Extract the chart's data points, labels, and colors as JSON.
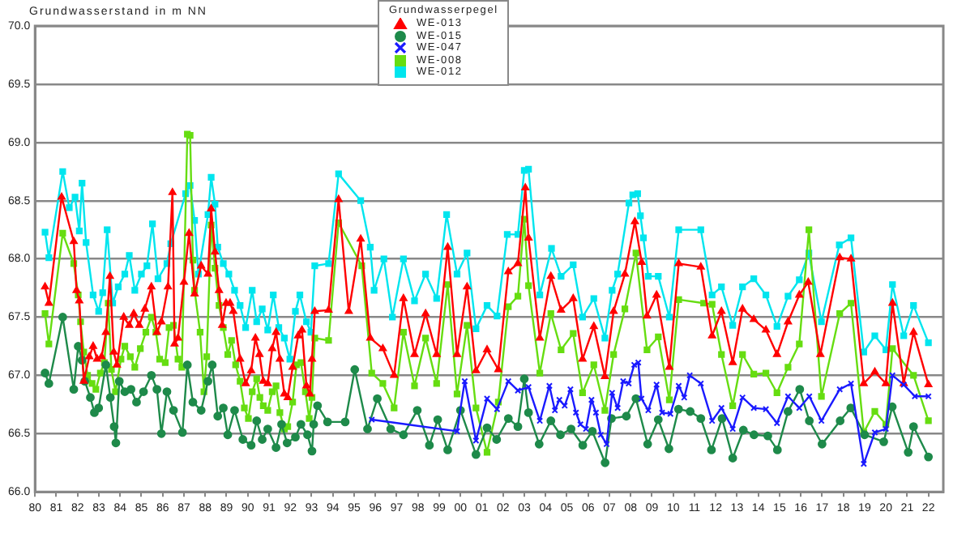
{
  "chart_data": {
    "type": "line",
    "ylabel": "Grundwasserstand in m NN",
    "legend_title": "Grundwasserpegel",
    "legend": "top",
    "grid": "y",
    "xlim": [
      1980,
      2022.7
    ],
    "xticks": [
      {
        "value": 1980,
        "label": "80"
      },
      {
        "value": 1981,
        "label": "81"
      },
      {
        "value": 1982,
        "label": "82"
      },
      {
        "value": 1983,
        "label": "83"
      },
      {
        "value": 1984,
        "label": "84"
      },
      {
        "value": 1985,
        "label": "85"
      },
      {
        "value": 1986,
        "label": "86"
      },
      {
        "value": 1987,
        "label": "87"
      },
      {
        "value": 1988,
        "label": "88"
      },
      {
        "value": 1989,
        "label": "89"
      },
      {
        "value": 1990,
        "label": "90"
      },
      {
        "value": 1991,
        "label": "91"
      },
      {
        "value": 1992,
        "label": "92"
      },
      {
        "value": 1993,
        "label": "93"
      },
      {
        "value": 1994,
        "label": "94"
      },
      {
        "value": 1995,
        "label": "95"
      },
      {
        "value": 1996,
        "label": "96"
      },
      {
        "value": 1997,
        "label": "97"
      },
      {
        "value": 1998,
        "label": "98"
      },
      {
        "value": 1999,
        "label": "99"
      },
      {
        "value": 2000,
        "label": "00"
      },
      {
        "value": 2001,
        "label": "01"
      },
      {
        "value": 2002,
        "label": "02"
      },
      {
        "value": 2003,
        "label": "03"
      },
      {
        "value": 2004,
        "label": "04"
      },
      {
        "value": 2005,
        "label": "05"
      },
      {
        "value": 2006,
        "label": "06"
      },
      {
        "value": 2007,
        "label": "07"
      },
      {
        "value": 2008,
        "label": "08"
      },
      {
        "value": 2009,
        "label": "09"
      },
      {
        "value": 2010,
        "label": "10"
      },
      {
        "value": 2011,
        "label": "11"
      },
      {
        "value": 2012,
        "label": "12"
      },
      {
        "value": 2013,
        "label": "13"
      },
      {
        "value": 2014,
        "label": "14"
      },
      {
        "value": 2015,
        "label": "15"
      },
      {
        "value": 2016,
        "label": "16"
      },
      {
        "value": 2017,
        "label": "17"
      },
      {
        "value": 2018,
        "label": "18"
      },
      {
        "value": 2019,
        "label": "19"
      },
      {
        "value": 2020,
        "label": "20"
      },
      {
        "value": 2021,
        "label": "21"
      },
      {
        "value": 2022,
        "label": "22"
      }
    ],
    "ylim": [
      66,
      70
    ],
    "yticks": [
      {
        "value": 66,
        "label": "66.0"
      },
      {
        "value": 66.5,
        "label": "66.5"
      },
      {
        "value": 67,
        "label": "67.0"
      },
      {
        "value": 67.5,
        "label": "67.5"
      },
      {
        "value": 68,
        "label": "68.0"
      },
      {
        "value": 68.5,
        "label": "68.5"
      },
      {
        "value": 69,
        "label": "69.0"
      },
      {
        "value": 69.5,
        "label": "69.5"
      },
      {
        "value": 70,
        "label": "70.0"
      }
    ],
    "series": [
      {
        "name": "WE-013",
        "color": "#ff0000",
        "marker": "triangle",
        "x": [
          1980.47,
          1980.65,
          1981.25,
          1981.82,
          1981.95,
          1982.08,
          1982.29,
          1982.55,
          1982.73,
          1982.92,
          1983.13,
          1983.33,
          1983.52,
          1983.7,
          1983.85,
          1984.17,
          1984.43,
          1984.64,
          1984.9,
          1985.16,
          1985.47,
          1985.73,
          1985.94,
          1986.25,
          1986.46,
          1986.56,
          1986.72,
          1987.0,
          1987.24,
          1987.5,
          1987.81,
          1988.13,
          1988.28,
          1988.46,
          1988.65,
          1988.8,
          1988.98,
          1989.17,
          1989.32,
          1989.64,
          1989.9,
          1990.16,
          1990.36,
          1990.55,
          1990.73,
          1990.94,
          1991.15,
          1991.33,
          1991.51,
          1991.72,
          1991.88,
          1992.11,
          1992.37,
          1992.55,
          1992.76,
          1992.92,
          1993.02,
          1993.15,
          1993.8,
          1994.27,
          1994.75,
          1995.31,
          1995.76,
          1996.35,
          1996.88,
          1997.32,
          1997.84,
          1998.36,
          1998.88,
          1999.4,
          1999.84,
          2000.31,
          2000.73,
          2001.25,
          2001.78,
          2002.25,
          2002.7,
          2003.05,
          2003.2,
          2003.73,
          2004.25,
          2004.73,
          2005.3,
          2005.74,
          2006.27,
          2006.79,
          2007.2,
          2007.73,
          2008.2,
          2008.52,
          2008.77,
          2009.22,
          2009.82,
          2010.26,
          2011.3,
          2011.83,
          2012.27,
          2012.8,
          2013.26,
          2013.79,
          2014.36,
          2014.88,
          2015.4,
          2015.93,
          2016.35,
          2016.92,
          2017.83,
          2018.36,
          2018.96,
          2019.48,
          2020.0,
          2020.31,
          2020.84,
          2021.3,
          2022.0
        ],
        "values": [
          67.76,
          67.62,
          68.53,
          68.15,
          67.73,
          67.64,
          66.95,
          67.16,
          67.25,
          67.14,
          67.16,
          67.37,
          67.85,
          67.2,
          67.09,
          67.5,
          67.43,
          67.53,
          67.43,
          67.57,
          67.76,
          67.37,
          67.46,
          67.76,
          68.57,
          67.27,
          67.32,
          67.8,
          68.22,
          67.7,
          67.94,
          67.87,
          68.43,
          68.06,
          67.73,
          67.43,
          67.62,
          67.62,
          67.55,
          67.14,
          66.93,
          67.04,
          67.32,
          67.18,
          66.95,
          66.93,
          67.23,
          67.37,
          67.14,
          66.84,
          66.81,
          67.07,
          67.34,
          67.39,
          66.91,
          66.84,
          67.14,
          67.55,
          67.56,
          68.51,
          67.55,
          68.17,
          67.32,
          67.23,
          67.0,
          67.66,
          67.18,
          67.53,
          67.18,
          68.1,
          67.18,
          67.76,
          67.04,
          67.22,
          67.05,
          67.89,
          67.96,
          68.61,
          68.18,
          67.32,
          67.85,
          67.56,
          67.66,
          67.14,
          67.42,
          66.99,
          67.55,
          67.87,
          68.32,
          67.97,
          67.51,
          67.69,
          67.07,
          67.96,
          67.93,
          67.34,
          67.55,
          67.11,
          67.57,
          67.48,
          67.39,
          67.18,
          67.46,
          67.69,
          67.8,
          67.18,
          68.01,
          68.0,
          66.93,
          67.03,
          66.93,
          67.62,
          66.93,
          67.37,
          66.92
        ]
      },
      {
        "name": "WE-015",
        "color": "#1e8a4a",
        "marker": "circle",
        "x": [
          1980.47,
          1980.65,
          1981.3,
          1981.82,
          1982.03,
          1982.21,
          1982.34,
          1982.6,
          1982.79,
          1982.99,
          1983.33,
          1983.54,
          1983.72,
          1983.8,
          1983.96,
          1984.22,
          1984.51,
          1984.77,
          1985.1,
          1985.47,
          1985.73,
          1985.94,
          1986.2,
          1986.51,
          1986.93,
          1987.16,
          1987.42,
          1987.81,
          1988.13,
          1988.33,
          1988.59,
          1988.85,
          1989.06,
          1989.38,
          1989.77,
          1990.16,
          1990.42,
          1990.68,
          1990.94,
          1991.33,
          1991.59,
          1991.85,
          1992.24,
          1992.5,
          1992.81,
          1993.02,
          1993.1,
          1993.28,
          1993.75,
          1994.58,
          1995.03,
          1995.63,
          1996.09,
          1996.72,
          1997.32,
          1997.97,
          1998.54,
          1998.93,
          1999.4,
          2000.0,
          2000.73,
          2001.25,
          2001.7,
          2002.25,
          2002.7,
          2003.0,
          2003.2,
          2003.7,
          2004.25,
          2004.7,
          2005.2,
          2005.75,
          2006.2,
          2006.8,
          2007.1,
          2007.8,
          2008.25,
          2008.8,
          2009.3,
          2009.8,
          2010.25,
          2010.8,
          2011.3,
          2011.8,
          2012.3,
          2012.8,
          2013.3,
          2013.8,
          2014.45,
          2014.9,
          2015.4,
          2015.95,
          2016.4,
          2017.0,
          2017.85,
          2018.35,
          2019.0,
          2019.9,
          2020.3,
          2021.05,
          2021.3,
          2022.0
        ],
        "values": [
          67.02,
          66.93,
          67.5,
          66.88,
          67.25,
          67.13,
          66.95,
          66.81,
          66.68,
          66.72,
          67.09,
          66.81,
          66.56,
          66.42,
          66.95,
          66.86,
          66.88,
          66.77,
          66.86,
          67.0,
          66.88,
          66.5,
          66.86,
          66.7,
          66.51,
          67.09,
          66.77,
          66.7,
          66.95,
          67.09,
          66.65,
          66.72,
          66.49,
          66.7,
          66.45,
          66.4,
          66.61,
          66.45,
          66.54,
          66.38,
          66.58,
          66.42,
          66.47,
          66.58,
          66.49,
          66.35,
          66.58,
          66.74,
          66.6,
          66.6,
          67.05,
          66.54,
          66.8,
          66.54,
          66.49,
          66.7,
          66.4,
          66.62,
          66.36,
          66.7,
          66.32,
          66.55,
          66.45,
          66.63,
          66.56,
          66.97,
          66.68,
          66.41,
          66.61,
          66.49,
          66.54,
          66.4,
          66.52,
          66.25,
          66.63,
          66.65,
          66.8,
          66.41,
          66.62,
          66.37,
          66.71,
          66.69,
          66.63,
          66.36,
          66.63,
          66.29,
          66.53,
          66.49,
          66.48,
          66.36,
          66.69,
          66.88,
          66.61,
          66.41,
          66.61,
          66.72,
          66.49,
          66.43,
          66.73,
          66.34,
          66.56,
          66.3
        ]
      },
      {
        "name": "WE-047",
        "color": "#1a1aff",
        "marker": "cross",
        "x": [
          1995.83,
          1999.84,
          2000.2,
          2000.73,
          2001.25,
          2001.72,
          2002.25,
          2002.7,
          2003.2,
          2003.73,
          2004.18,
          2004.44,
          2004.65,
          2004.9,
          2005.17,
          2005.43,
          2005.64,
          2005.9,
          2006.16,
          2006.37,
          2006.6,
          2006.87,
          2007.13,
          2007.39,
          2007.65,
          2007.91,
          2008.17,
          2008.36,
          2008.51,
          2008.83,
          2009.22,
          2009.48,
          2009.87,
          2010.26,
          2010.52,
          2010.78,
          2011.3,
          2011.83,
          2012.27,
          2012.8,
          2013.26,
          2013.79,
          2014.36,
          2014.88,
          2015.4,
          2015.93,
          2016.4,
          2016.97,
          2017.83,
          2018.36,
          2018.96,
          2019.48,
          2020.0,
          2020.31,
          2020.84,
          2021.36,
          2022.0
        ],
        "values": [
          66.62,
          66.52,
          66.95,
          66.44,
          66.8,
          66.71,
          66.95,
          66.87,
          66.9,
          66.61,
          66.91,
          66.7,
          66.79,
          66.74,
          66.88,
          66.68,
          66.58,
          66.54,
          66.79,
          66.68,
          66.49,
          66.41,
          66.85,
          66.72,
          66.95,
          66.93,
          67.09,
          67.11,
          66.8,
          66.7,
          66.92,
          66.68,
          66.67,
          66.91,
          66.81,
          67.0,
          66.93,
          66.61,
          66.72,
          66.54,
          66.81,
          66.72,
          66.71,
          66.59,
          66.82,
          66.72,
          66.82,
          66.61,
          66.88,
          66.93,
          66.24,
          66.51,
          66.54,
          67.0,
          66.92,
          66.82,
          66.82
        ]
      },
      {
        "name": "WE-008",
        "color": "#66dd11",
        "marker": "square",
        "x": [
          1980.47,
          1980.65,
          1981.3,
          1981.82,
          1982.03,
          1982.14,
          1982.29,
          1982.47,
          1982.68,
          1982.86,
          1983.07,
          1983.26,
          1983.44,
          1983.59,
          1983.78,
          1984.04,
          1984.22,
          1984.48,
          1984.69,
          1984.95,
          1985.21,
          1985.47,
          1985.68,
          1985.86,
          1986.12,
          1986.3,
          1986.51,
          1986.72,
          1986.9,
          1987.16,
          1987.29,
          1987.42,
          1987.5,
          1987.76,
          1987.94,
          1988.07,
          1988.28,
          1988.46,
          1988.65,
          1988.85,
          1989.06,
          1989.24,
          1989.43,
          1989.64,
          1989.84,
          1990.03,
          1990.21,
          1990.42,
          1990.57,
          1990.73,
          1990.94,
          1991.15,
          1991.33,
          1991.51,
          1991.72,
          1991.88,
          1992.11,
          1992.29,
          1992.5,
          1992.71,
          1992.89,
          1993.02,
          1993.15,
          1993.8,
          1994.27,
          1995.36,
          1995.83,
          1996.35,
          1996.88,
          1997.32,
          1997.84,
          1998.36,
          1998.88,
          1999.4,
          1999.84,
          2000.31,
          2000.73,
          2001.25,
          2001.78,
          2002.25,
          2002.7,
          2003.0,
          2003.2,
          2003.73,
          2004.25,
          2004.73,
          2005.3,
          2005.74,
          2006.27,
          2006.79,
          2007.2,
          2007.73,
          2008.25,
          2008.77,
          2009.3,
          2009.82,
          2010.26,
          2011.43,
          2011.83,
          2012.27,
          2012.8,
          2013.26,
          2013.79,
          2014.36,
          2014.88,
          2015.4,
          2015.93,
          2016.38,
          2016.97,
          2017.83,
          2018.36,
          2018.96,
          2019.48,
          2020.0,
          2020.31,
          2021.3,
          2022.0
        ],
        "values": [
          67.53,
          67.27,
          68.22,
          67.96,
          67.69,
          67.46,
          67.2,
          67.0,
          66.93,
          66.88,
          67.02,
          67.11,
          67.62,
          67.05,
          66.86,
          67.14,
          67.25,
          67.16,
          67.07,
          67.23,
          67.37,
          67.5,
          67.37,
          67.14,
          67.11,
          67.41,
          67.43,
          67.14,
          67.07,
          69.07,
          69.06,
          67.99,
          67.73,
          67.37,
          66.86,
          67.16,
          68.29,
          67.92,
          67.6,
          67.41,
          67.18,
          67.3,
          67.09,
          66.95,
          66.72,
          66.63,
          66.86,
          66.97,
          66.81,
          66.74,
          66.7,
          66.86,
          66.91,
          66.68,
          66.54,
          66.56,
          66.77,
          67.09,
          67.11,
          66.86,
          66.63,
          66.81,
          67.32,
          67.3,
          68.31,
          67.94,
          67.02,
          66.93,
          66.72,
          67.37,
          66.91,
          67.32,
          66.93,
          67.78,
          66.84,
          67.43,
          66.72,
          66.34,
          66.77,
          67.59,
          67.68,
          68.34,
          67.77,
          67.02,
          67.53,
          67.22,
          67.36,
          66.85,
          67.09,
          66.7,
          67.18,
          67.57,
          68.05,
          67.22,
          67.33,
          66.79,
          67.65,
          67.62,
          67.61,
          67.18,
          66.74,
          67.18,
          67.01,
          67.02,
          66.85,
          67.07,
          67.27,
          68.25,
          66.82,
          67.53,
          67.62,
          66.51,
          66.69,
          66.58,
          67.23,
          67.0,
          66.61
        ]
      },
      {
        "name": "WE-012",
        "color": "#00e5ee",
        "marker": "square",
        "x": [
          1980.47,
          1980.65,
          1981.3,
          1981.61,
          1981.88,
          1982.08,
          1982.21,
          1982.4,
          1982.73,
          1982.99,
          1983.18,
          1983.39,
          1983.65,
          1983.91,
          1984.22,
          1984.43,
          1984.69,
          1985.0,
          1985.26,
          1985.52,
          1985.78,
          1986.2,
          1986.38,
          1987.08,
          1987.29,
          1987.5,
          1987.68,
          1988.13,
          1988.28,
          1988.46,
          1988.59,
          1988.85,
          1989.11,
          1989.38,
          1989.64,
          1989.9,
          1990.21,
          1990.42,
          1990.68,
          1990.94,
          1991.2,
          1991.46,
          1991.72,
          1991.98,
          1992.24,
          1992.45,
          1992.76,
          1992.97,
          1993.15,
          1993.8,
          1994.27,
          1995.31,
          1995.76,
          1995.94,
          1996.4,
          1996.8,
          1997.32,
          1997.84,
          1998.36,
          1998.88,
          1999.35,
          1999.84,
          2000.31,
          2000.73,
          2001.25,
          2001.72,
          2002.2,
          2002.7,
          2003.0,
          2003.2,
          2003.73,
          2004.28,
          2004.73,
          2005.3,
          2005.74,
          2006.27,
          2006.79,
          2007.13,
          2007.39,
          2007.92,
          2008.1,
          2008.33,
          2008.46,
          2008.6,
          2008.83,
          2009.3,
          2009.82,
          2010.26,
          2011.3,
          2011.83,
          2012.27,
          2012.8,
          2013.26,
          2013.79,
          2014.36,
          2014.88,
          2015.4,
          2015.93,
          2016.38,
          2016.97,
          2017.81,
          2018.36,
          2018.96,
          2019.48,
          2020.0,
          2020.31,
          2020.84,
          2021.3,
          2022.0
        ],
        "values": [
          68.23,
          68.01,
          68.75,
          68.44,
          68.53,
          68.24,
          68.65,
          68.14,
          67.69,
          67.55,
          67.71,
          68.25,
          67.62,
          67.76,
          67.87,
          68.03,
          67.73,
          67.87,
          67.94,
          68.3,
          67.83,
          67.96,
          68.13,
          68.56,
          68.63,
          68.33,
          67.87,
          68.38,
          68.7,
          68.47,
          68.1,
          67.96,
          67.87,
          67.73,
          67.6,
          67.41,
          67.73,
          67.46,
          67.57,
          67.39,
          67.69,
          67.41,
          67.32,
          67.14,
          67.55,
          67.69,
          67.46,
          67.37,
          67.94,
          67.96,
          68.73,
          68.5,
          68.1,
          67.73,
          68.0,
          67.5,
          68.0,
          67.64,
          67.87,
          67.66,
          68.38,
          67.87,
          68.05,
          67.4,
          67.6,
          67.51,
          68.21,
          68.21,
          68.76,
          68.77,
          67.69,
          68.09,
          67.85,
          67.95,
          67.5,
          67.66,
          67.32,
          67.73,
          67.87,
          68.48,
          68.55,
          68.56,
          68.37,
          68.18,
          67.85,
          67.85,
          67.5,
          68.25,
          68.25,
          67.69,
          67.76,
          67.43,
          67.76,
          67.83,
          67.69,
          67.42,
          67.68,
          67.82,
          68.05,
          67.46,
          68.12,
          68.18,
          67.2,
          67.34,
          67.22,
          67.78,
          67.34,
          67.6,
          67.28
        ]
      }
    ]
  }
}
